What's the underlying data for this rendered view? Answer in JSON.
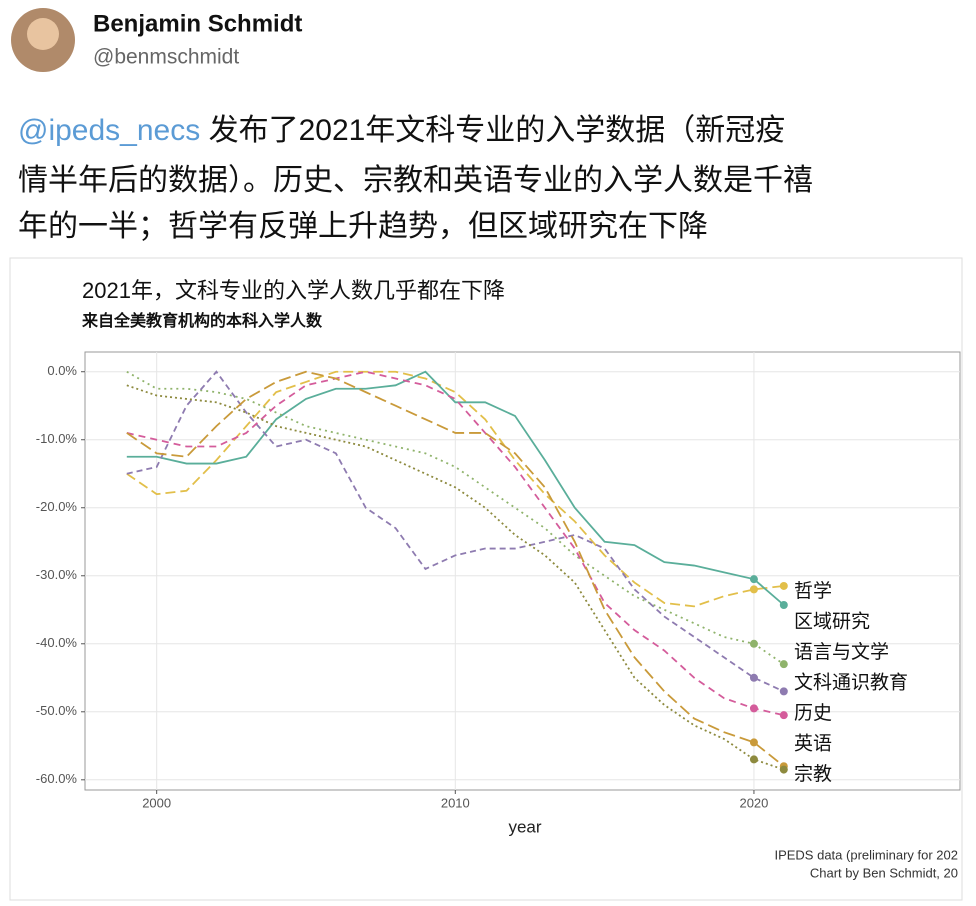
{
  "tweet": {
    "name": "Benjamin Schmidt",
    "handle": "@benmschmidt",
    "mention": "@ipeds_necs",
    "text_lines": [
      " 发布了2021年文科专业的入学数据（新冠疫",
      "情半年后的数据）。历史、宗教和英语专业的入学人数是千禧",
      "年的一半；哲学有反弹上升趋势，但区域研究在下降"
    ]
  },
  "chart_data": {
    "type": "line",
    "title": "2021年，文科专业的入学人数几乎都在下降",
    "subtitle": "来自全美教育机构的本科入学人数",
    "x_label": "year",
    "caption": [
      "IPEDS data (preliminary for 202",
      "Chart by Ben Schmidt, 20"
    ],
    "x": [
      1999,
      2000,
      2001,
      2002,
      2003,
      2004,
      2005,
      2006,
      2007,
      2008,
      2009,
      2010,
      2011,
      2012,
      2013,
      2014,
      2015,
      2016,
      2017,
      2018,
      2019,
      2020,
      2021
    ],
    "xlim": [
      1997.6,
      2026.9
    ],
    "xticks": [
      2000,
      2010,
      2020
    ],
    "ylim": [
      -61.5,
      2.9
    ],
    "yticks": [
      {
        "value": 0,
        "label": "0.0%"
      },
      {
        "value": -10,
        "label": "-10.0%"
      },
      {
        "value": -20,
        "label": "-20.0%"
      },
      {
        "value": -30,
        "label": "-30.0%"
      },
      {
        "value": -40,
        "label": "-40.0%"
      },
      {
        "value": -50,
        "label": "-50.0%"
      },
      {
        "value": -60,
        "label": "-60.0%"
      }
    ],
    "grid": true,
    "series": [
      {
        "name": "哲学",
        "color": "#e2bf4a",
        "dash": "10 5",
        "values": [
          -15,
          -18,
          -17.5,
          -13,
          -8,
          -3,
          -1.5,
          0,
          0,
          0,
          -1,
          -3,
          -7,
          -13,
          -18,
          -22,
          -27,
          -31,
          -34,
          -34.5,
          -33,
          -32,
          -31.5
        ]
      },
      {
        "name": "区域研究",
        "color": "#5aae9a",
        "dash": "",
        "values": [
          -12.5,
          -12.5,
          -13.5,
          -13.5,
          -12.5,
          -7,
          -4,
          -2.5,
          -2.5,
          -2,
          0,
          -4.5,
          -4.5,
          -6.5,
          -13,
          -20,
          -25,
          -25.5,
          -28,
          -28.5,
          -29.5,
          -30.5,
          -34.3
        ]
      },
      {
        "name": "语言与文学",
        "color": "#8fb36b",
        "dash": "2 4",
        "values": [
          0,
          -2.5,
          -2.5,
          -3,
          -4,
          -6,
          -8,
          -9,
          -10,
          -11,
          -12,
          -14,
          -17,
          -20,
          -23,
          -27,
          -30,
          -33,
          -35,
          -37,
          -39,
          -40,
          -43
        ]
      },
      {
        "name": "文科通识教育",
        "color": "#8e7bb0",
        "dash": "6 4",
        "values": [
          -15,
          -14,
          -5,
          0,
          -6,
          -11,
          -10,
          -12,
          -20,
          -23,
          -29,
          -27,
          -26,
          -26,
          -25,
          -24,
          -26,
          -32,
          -36,
          -39,
          -42,
          -45,
          -47
        ]
      },
      {
        "name": "历史",
        "color": "#d45c9b",
        "dash": "7 5",
        "values": [
          -9,
          -10,
          -11,
          -11,
          -9,
          -5,
          -2,
          -1,
          0,
          -1,
          -2,
          -4,
          -9,
          -14,
          -20,
          -26,
          -34,
          -38,
          -41,
          -45,
          -48,
          -49.5,
          -50.5
        ]
      },
      {
        "name": "英语",
        "color": "#c99a3a",
        "dash": "12 5",
        "values": [
          -9,
          -12,
          -12.5,
          -8,
          -4,
          -1.5,
          0,
          -1,
          -3,
          -5,
          -7,
          -9,
          -9,
          -12,
          -17,
          -25,
          -35,
          -42,
          -47,
          -51,
          -53,
          -54.5,
          -58
        ]
      },
      {
        "name": "宗教",
        "color": "#8d8a3e",
        "dash": "2 3",
        "values": [
          -2,
          -3.5,
          -4,
          -4.5,
          -6,
          -8,
          -9,
          -10,
          -11,
          -13,
          -15,
          -17,
          -20,
          -24,
          -27,
          -31,
          -38,
          -45,
          -49,
          -52,
          -54,
          -57,
          -58.5
        ]
      }
    ]
  }
}
